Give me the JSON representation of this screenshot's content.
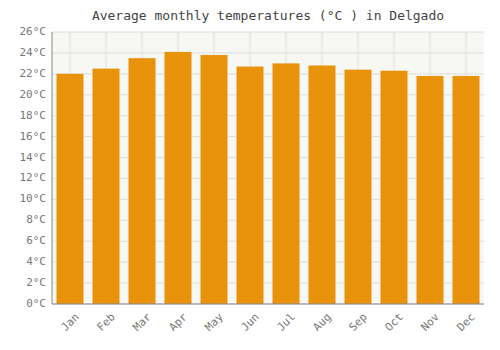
{
  "chart_data": {
    "type": "bar",
    "title": "Average monthly temperatures (°C ) in Delgado",
    "categories": [
      "Jan",
      "Feb",
      "Mar",
      "Apr",
      "May",
      "Jun",
      "Jul",
      "Aug",
      "Sep",
      "Oct",
      "Nov",
      "Dec"
    ],
    "values": [
      22.0,
      22.5,
      23.5,
      24.1,
      23.8,
      22.7,
      23.0,
      22.8,
      22.4,
      22.3,
      21.8,
      21.8
    ],
    "color": "#E8930A",
    "ylim": [
      0,
      26
    ],
    "yticks": [
      {
        "value": 0,
        "label": "0°C"
      },
      {
        "value": 2,
        "label": "2°C"
      },
      {
        "value": 4,
        "label": "4°C"
      },
      {
        "value": 6,
        "label": "6°C"
      },
      {
        "value": 8,
        "label": "8°C"
      },
      {
        "value": 10,
        "label": "10°C"
      },
      {
        "value": 12,
        "label": "12°C"
      },
      {
        "value": 14,
        "label": "14°C"
      },
      {
        "value": 16,
        "label": "16°C"
      },
      {
        "value": 18,
        "label": "18°C"
      },
      {
        "value": 20,
        "label": "20°C"
      },
      {
        "value": 22,
        "label": "22°C"
      },
      {
        "value": 24,
        "label": "24°C"
      },
      {
        "value": 26,
        "label": "26°C"
      }
    ],
    "grid": true
  }
}
